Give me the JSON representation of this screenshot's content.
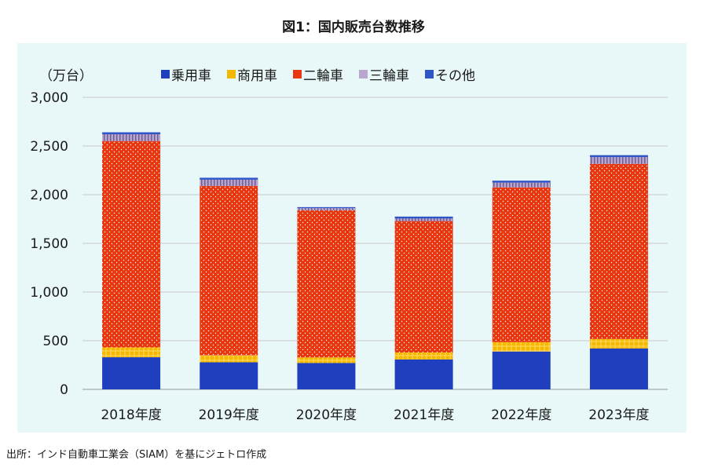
{
  "title": "図1：国内販売台数推移",
  "source": "出所：インド自動車工業会（SIAM）を基にジェトロ作成",
  "chart_data": {
    "type": "bar",
    "stacked": true,
    "unit_label": "（万台）",
    "categories": [
      "2018年度",
      "2019年度",
      "2020年度",
      "2021年度",
      "2022年度",
      "2023年度"
    ],
    "ylim": [
      0,
      3000
    ],
    "yticks": [
      0,
      500,
      1000,
      1500,
      2000,
      2500,
      3000
    ],
    "ytick_labels": [
      "0",
      "500",
      "1,000",
      "1,500",
      "2,000",
      "2,500",
      "3,000"
    ],
    "grid": true,
    "legend_position": "top",
    "series": [
      {
        "name": "乗用車",
        "color": "#1f3fbf",
        "values": [
          330,
          278,
          271,
          307,
          389,
          420
        ]
      },
      {
        "name": "商用車",
        "color": "#f5b800",
        "values": [
          101,
          72,
          57,
          72,
          96,
          97
        ]
      },
      {
        "name": "二輪車",
        "color": "#e8360f",
        "values": [
          2120,
          1740,
          1512,
          1350,
          1590,
          1800
        ]
      },
      {
        "name": "三輪車",
        "color": "#b9a6cf",
        "values": [
          70,
          64,
          22,
          26,
          49,
          69
        ]
      },
      {
        "name": "その他",
        "color": "#2e56c8",
        "values": [
          20,
          20,
          10,
          20,
          20,
          20
        ]
      }
    ]
  }
}
